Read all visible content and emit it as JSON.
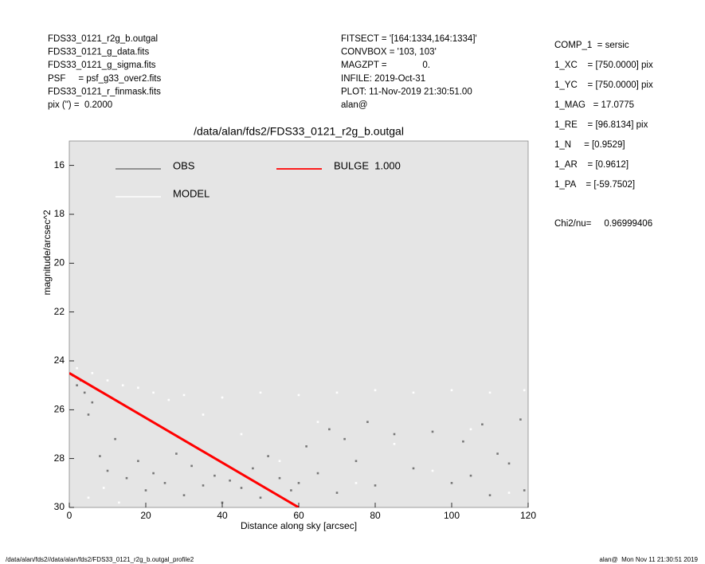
{
  "header": {
    "left": [
      "FDS33_0121_r2g_b.outgal",
      "FDS33_0121_g_data.fits",
      "FDS33_0121_g_sigma.fits",
      "PSF     = psf_g33_over2.fits",
      "FDS33_0121_r_finmask.fits",
      "pix (\") =  0.2000"
    ],
    "middle": [
      "FITSECT = '[164:1334,164:1334]'",
      "CONVBOX = '103, 103'",
      "MAGZPT =              0.",
      "INFILE: 2019-Oct-31",
      "PLOT: 11-Nov-2019 21:30:51.00",
      "alan@"
    ],
    "right": [
      "COMP_1  = sersic",
      "1_XC    = [750.0000] pix",
      "1_YC    = [750.0000] pix",
      "1_MAG   = 17.0775",
      "1_RE    = [96.8134] pix",
      "1_N     = [0.9529]",
      "1_AR    = [0.9612]",
      "1_PA    = [-59.7502]"
    ],
    "chi2": "Chi2/nu=     0.96999406"
  },
  "footer": {
    "left": "/data/alan/fds2//data/alan/fds2/FDS33_0121_r2g_b.outgal_profile2",
    "right": "alan@  Mon Nov 11 21:30:51 2019"
  },
  "chart_data": {
    "type": "scatter",
    "title": "/data/alan/fds2/FDS33_0121_r2g_b.outgal",
    "x_label": "Distance along sky [arcsec]",
    "y_label": "magnitude/arcsec^2",
    "xlim": [
      0,
      120
    ],
    "xticks": [
      0,
      20,
      40,
      60,
      80,
      100,
      120
    ],
    "ylim": [
      30,
      15
    ],
    "yticks": [
      16,
      18,
      20,
      22,
      24,
      26,
      28,
      30
    ],
    "background": "#e5e5e5",
    "series": [
      {
        "name": "OBS",
        "color": "#777777",
        "mode": "points",
        "x": [
          1,
          2,
          3,
          4,
          5,
          6,
          8,
          10,
          12,
          15,
          18,
          20,
          22,
          25,
          28,
          30,
          32,
          35,
          38,
          40,
          42,
          45,
          48,
          50,
          52,
          55,
          58,
          60,
          62,
          65,
          68,
          70,
          72,
          75,
          78,
          80,
          85,
          90,
          95,
          100,
          103,
          105,
          108,
          110,
          112,
          115,
          118,
          119
        ],
        "values": [
          24.6,
          25.0,
          24.8,
          25.3,
          26.2,
          25.7,
          27.9,
          28.5,
          27.2,
          28.8,
          28.1,
          29.3,
          28.6,
          29.0,
          27.8,
          29.5,
          28.3,
          29.1,
          28.7,
          29.8,
          28.9,
          29.2,
          28.4,
          29.6,
          27.9,
          28.8,
          29.3,
          29.0,
          27.5,
          28.6,
          26.8,
          29.4,
          27.2,
          28.1,
          26.5,
          29.1,
          27.0,
          28.4,
          26.9,
          29.0,
          27.3,
          28.7,
          26.6,
          29.5,
          27.8,
          28.2,
          26.4,
          29.3
        ]
      },
      {
        "name": "MODEL",
        "color": "#ffffff",
        "mode": "points",
        "x": [
          2,
          6,
          10,
          14,
          18,
          22,
          26,
          30,
          35,
          40,
          45,
          50,
          55,
          60,
          65,
          70,
          75,
          80,
          85,
          90,
          95,
          100,
          105,
          110,
          115,
          119,
          5,
          9,
          13
        ],
        "values": [
          24.3,
          24.5,
          24.8,
          25.0,
          25.1,
          25.3,
          25.6,
          25.4,
          26.2,
          25.5,
          27.0,
          25.3,
          28.1,
          25.4,
          26.5,
          25.3,
          29.0,
          25.2,
          27.4,
          25.3,
          28.5,
          25.2,
          26.8,
          25.3,
          29.4,
          25.2,
          29.6,
          29.2,
          29.8
        ]
      },
      {
        "name": "BULGE  1.000",
        "color": "#ff0000",
        "mode": "line",
        "x": [
          0,
          60
        ],
        "values": [
          24.5,
          30
        ]
      }
    ]
  }
}
